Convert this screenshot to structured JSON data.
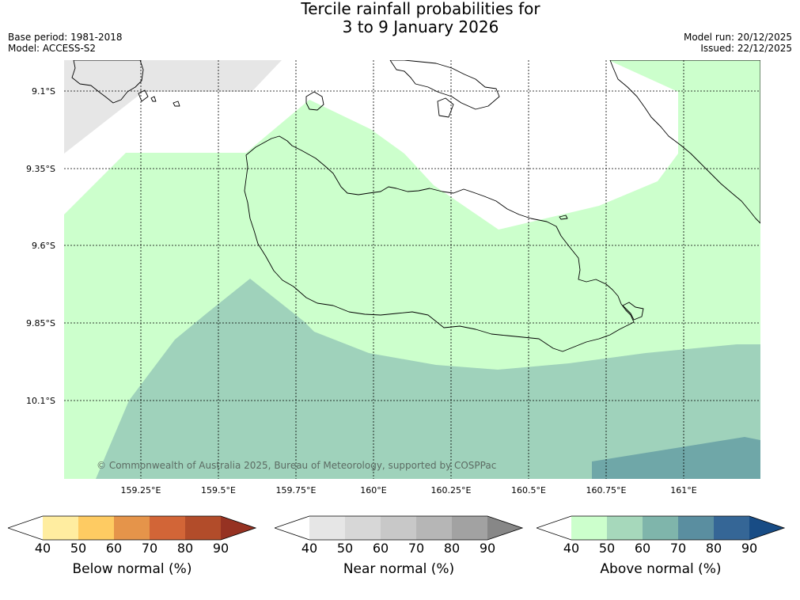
{
  "title": {
    "line1": "Tercile rainfall probabilities for",
    "line2": "3 to 9 January 2026"
  },
  "meta_left": {
    "base_period": "Base period: 1981-2018",
    "model": "Model: ACCESS-S2"
  },
  "meta_right": {
    "model_run": "Model run: 20/12/2025",
    "issued": "Issued: 22/12/2025"
  },
  "map": {
    "lat_labels": [
      "9.1°S",
      "9.35°S",
      "9.6°S",
      "9.85°S",
      "10.1°S"
    ],
    "lon_labels": [
      "159.25°E",
      "159.5°E",
      "159.75°E",
      "160°E",
      "160.25°E",
      "160.5°E",
      "160.75°E",
      "161°E"
    ],
    "copyright": "© Commonwealth of Australia 2025, Bureau of Meteorology, supported by COSPPac",
    "colors": {
      "ocean_nodata": "#ffffff",
      "grey_region": "#e6e6e6",
      "above_40_50": "#ccffcc",
      "above_60_70": "#9fd2bb",
      "above_80_90": "#6fa7a8",
      "coastline": "#000000",
      "gridline": "#000000"
    }
  },
  "colorbars": [
    {
      "label": "Below normal (%)",
      "ticks": [
        "40",
        "50",
        "60",
        "70",
        "80",
        "90"
      ],
      "colors": [
        "#ffffff",
        "#ffeda0",
        "#fecb62",
        "#e5944a",
        "#d26537",
        "#b24c2a",
        "#963222"
      ]
    },
    {
      "label": "Near normal (%)",
      "ticks": [
        "40",
        "50",
        "60",
        "70",
        "80",
        "90"
      ],
      "colors": [
        "#ffffff",
        "#e6e6e6",
        "#d7d7d7",
        "#c8c8c8",
        "#b6b6b6",
        "#a2a2a2",
        "#878787"
      ]
    },
    {
      "label": "Above normal (%)",
      "ticks": [
        "40",
        "50",
        "60",
        "70",
        "80",
        "90"
      ],
      "colors": [
        "#ffffff",
        "#ccffcc",
        "#a6d8bb",
        "#7fb5ab",
        "#5a8ea0",
        "#356696",
        "#184c85"
      ]
    }
  ]
}
